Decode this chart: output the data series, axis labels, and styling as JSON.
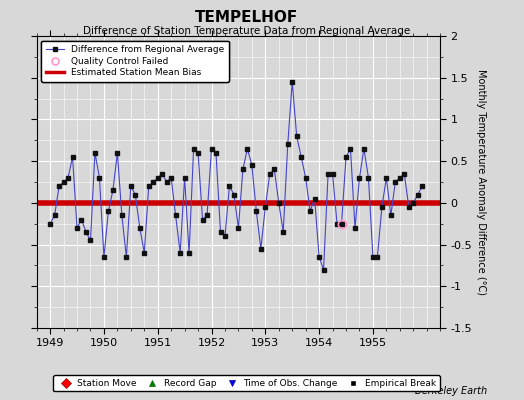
{
  "title": "TEMPELHOF",
  "subtitle": "Difference of Station Temperature Data from Regional Average",
  "ylabel": "Monthly Temperature Anomaly Difference (°C)",
  "xlabel_years": [
    1949,
    1950,
    1951,
    1952,
    1953,
    1954,
    1955
  ],
  "ylim": [
    -1.5,
    2.0
  ],
  "bias_value": 0.0,
  "background_color": "#d8d8d8",
  "plot_bg_color": "#d8d8d8",
  "line_color": "#4444cc",
  "marker_color": "#111111",
  "bias_color": "#cc0000",
  "qc_fail_color": "#ff99cc",
  "watermark": "Berkeley Earth",
  "x_values": [
    1949.0,
    1949.083,
    1949.167,
    1949.25,
    1949.333,
    1949.417,
    1949.5,
    1949.583,
    1949.667,
    1949.75,
    1949.833,
    1949.917,
    1950.0,
    1950.083,
    1950.167,
    1950.25,
    1950.333,
    1950.417,
    1950.5,
    1950.583,
    1950.667,
    1950.75,
    1950.833,
    1950.917,
    1951.0,
    1951.083,
    1951.167,
    1951.25,
    1951.333,
    1951.417,
    1951.5,
    1951.583,
    1951.667,
    1951.75,
    1951.833,
    1951.917,
    1952.0,
    1952.083,
    1952.167,
    1952.25,
    1952.333,
    1952.417,
    1952.5,
    1952.583,
    1952.667,
    1952.75,
    1952.833,
    1952.917,
    1953.0,
    1953.083,
    1953.167,
    1953.25,
    1953.333,
    1953.417,
    1953.5,
    1953.583,
    1953.667,
    1953.75,
    1953.833,
    1953.917,
    1954.0,
    1954.083,
    1954.167,
    1954.25,
    1954.333,
    1954.417,
    1954.5,
    1954.583,
    1954.667,
    1954.75,
    1954.833,
    1954.917,
    1955.0,
    1955.083,
    1955.167,
    1955.25,
    1955.333,
    1955.417,
    1955.5,
    1955.583,
    1955.667,
    1955.75,
    1955.833,
    1955.917
  ],
  "y_values": [
    -0.25,
    -0.15,
    0.2,
    0.25,
    0.3,
    0.55,
    -0.3,
    -0.2,
    -0.35,
    -0.45,
    0.6,
    0.3,
    -0.65,
    -0.1,
    0.15,
    0.6,
    -0.15,
    -0.65,
    0.2,
    0.1,
    -0.3,
    -0.6,
    0.2,
    0.25,
    0.3,
    0.35,
    0.25,
    0.3,
    -0.15,
    -0.6,
    0.3,
    -0.6,
    0.65,
    0.6,
    -0.2,
    -0.15,
    0.65,
    0.6,
    -0.35,
    -0.4,
    0.2,
    0.1,
    -0.3,
    0.4,
    0.65,
    0.45,
    -0.1,
    -0.55,
    -0.05,
    0.35,
    0.4,
    0.0,
    -0.35,
    0.7,
    1.45,
    0.8,
    0.55,
    0.3,
    -0.1,
    0.05,
    -0.65,
    -0.8,
    0.35,
    0.35,
    -0.25,
    -0.25,
    0.55,
    0.65,
    -0.3,
    0.3,
    0.65,
    0.3,
    -0.65,
    -0.65,
    -0.05,
    0.3,
    -0.15,
    0.25,
    0.3,
    0.35,
    -0.05,
    0.0,
    0.1,
    0.2
  ],
  "qc_fail_x": [
    1954.417
  ],
  "qc_fail_y": [
    -0.25
  ]
}
